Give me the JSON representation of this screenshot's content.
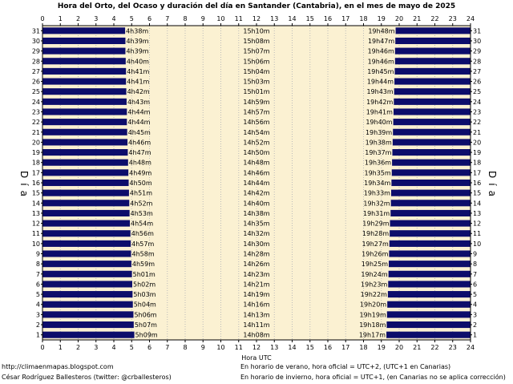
{
  "chart_data": {
    "type": "bar",
    "orientation": "horizontal",
    "title": "Hora del Orto, del Ocaso y duración del día en Santander (Cantabria), en el mes de mayo de 2025",
    "xlabel": "Hora UTC",
    "ylabel_left": "Día",
    "ylabel_right": "Día",
    "xlim": [
      0,
      24
    ],
    "x_ticks": [
      0,
      1,
      2,
      3,
      4,
      5,
      6,
      7,
      8,
      9,
      10,
      11,
      12,
      13,
      14,
      15,
      16,
      17,
      18,
      19,
      20,
      21,
      22,
      23,
      24
    ],
    "ylim": [
      1,
      31
    ],
    "grid": true,
    "colors": {
      "night": "#0d0d6b",
      "day": "#fbf1d2",
      "grid": "#bbbbbb"
    },
    "days": [
      1,
      2,
      3,
      4,
      5,
      6,
      7,
      8,
      9,
      10,
      11,
      12,
      13,
      14,
      15,
      16,
      17,
      18,
      19,
      20,
      21,
      22,
      23,
      24,
      25,
      26,
      27,
      28,
      29,
      30,
      31
    ],
    "sunrise": [
      "5h09m",
      "5h07m",
      "5h06m",
      "5h04m",
      "5h03m",
      "5h02m",
      "5h01m",
      "4h59m",
      "4h58m",
      "4h57m",
      "4h56m",
      "4h54m",
      "4h53m",
      "4h52m",
      "4h51m",
      "4h50m",
      "4h49m",
      "4h48m",
      "4h47m",
      "4h46m",
      "4h45m",
      "4h44m",
      "4h44m",
      "4h43m",
      "4h42m",
      "4h41m",
      "4h41m",
      "4h40m",
      "4h39m",
      "4h39m",
      "4h38m"
    ],
    "sunset": [
      "19h17m",
      "19h18m",
      "19h19m",
      "19h20m",
      "19h22m",
      "19h23m",
      "19h24m",
      "19h25m",
      "19h26m",
      "19h27m",
      "19h28m",
      "19h29m",
      "19h31m",
      "19h32m",
      "19h33m",
      "19h34m",
      "19h35m",
      "19h36m",
      "19h37m",
      "19h38m",
      "19h39m",
      "19h40m",
      "19h41m",
      "19h42m",
      "19h43m",
      "19h44m",
      "19h45m",
      "19h46m",
      "19h46m",
      "19h47m",
      "19h48m"
    ],
    "daylength": [
      "14h08m",
      "14h11m",
      "14h13m",
      "14h16m",
      "14h19m",
      "14h21m",
      "14h23m",
      "14h26m",
      "14h28m",
      "14h30m",
      "14h32m",
      "14h35m",
      "14h38m",
      "14h40m",
      "14h42m",
      "14h44m",
      "14h46m",
      "14h48m",
      "14h50m",
      "14h52m",
      "14h54m",
      "14h56m",
      "14h57m",
      "14h59m",
      "15h01m",
      "15h03m",
      "15h04m",
      "15h06m",
      "15h07m",
      "15h08m",
      "15h10m"
    ]
  },
  "footer": {
    "blog": "http://climaenmapas.blogspot.com",
    "author": "César Rodríguez Ballesteros (twitter: @crballesteros)",
    "summer_note": "En horario de verano, hora oficial = UTC+2, (UTC+1 en Canarias)",
    "winter_note": "En horario de invierno, hora oficial = UTC+1, (en Canarias no se aplica corrección)"
  }
}
